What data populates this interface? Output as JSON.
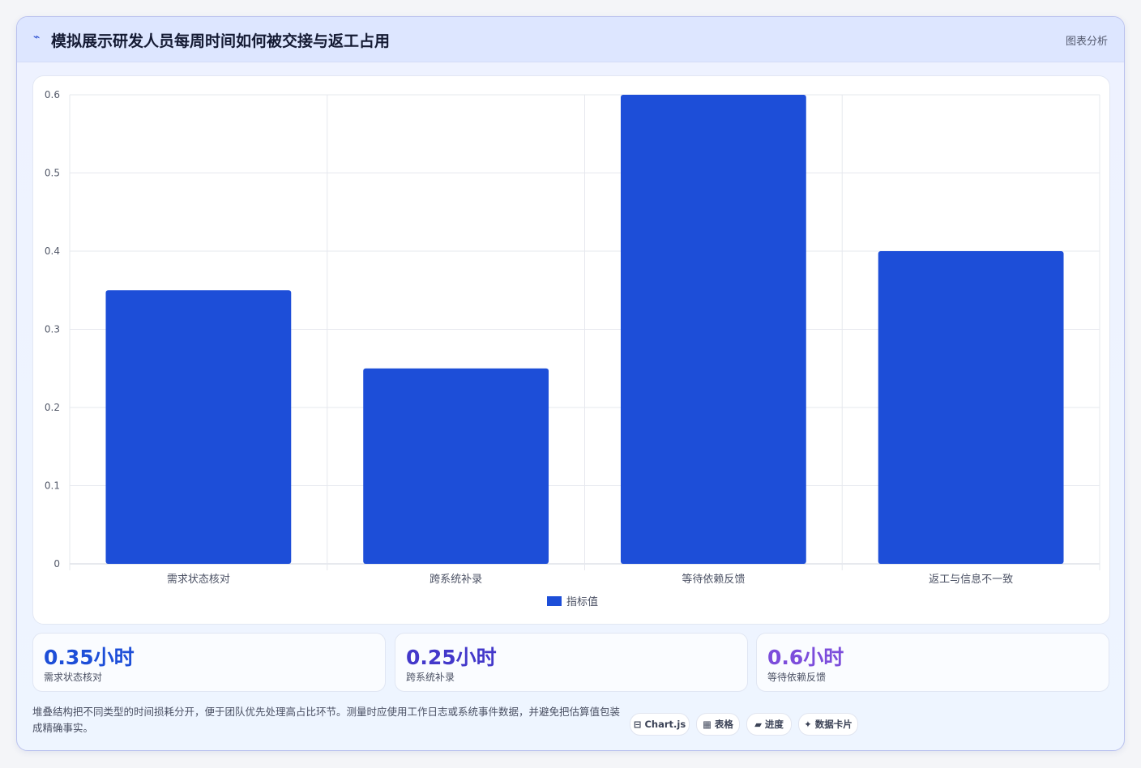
{
  "header": {
    "icon": "trend-line-icon",
    "title": "模拟展示研发人员每周时间如何被交接与返工占用",
    "right_label": "图表分析"
  },
  "chart_data": {
    "type": "bar",
    "categories": [
      "需求状态核对",
      "跨系统补录",
      "等待依赖反馈",
      "返工与信息不一致"
    ],
    "series": [
      {
        "name": "指标值",
        "values": [
          0.35,
          0.25,
          0.6,
          0.4
        ],
        "color": "#1d4ed8"
      }
    ],
    "ylim": [
      0,
      0.6
    ],
    "yticks": [
      0,
      0.1,
      0.2,
      0.3,
      0.4,
      0.5,
      0.6
    ],
    "grid": true,
    "legend": "bottom-center"
  },
  "stats": [
    {
      "value": "0.35小时",
      "label": "需求状态核对",
      "color": "#1d4ed8"
    },
    {
      "value": "0.25小时",
      "label": "跨系统补录",
      "color": "#4338ca"
    },
    {
      "value": "0.6小时",
      "label": "等待依赖反馈",
      "color": "#7c4ddb"
    }
  ],
  "footer": {
    "note": "堆叠结构把不同类型的时间损耗分开，便于团队优先处理高占比环节。测量时应使用工作日志或系统事件数据，并避免把估算值包装成精确事实。",
    "pills": [
      {
        "label": "⊟ Chart.js",
        "icon": "chart-icon"
      },
      {
        "label": "▦ 表格",
        "icon": "table-icon"
      },
      {
        "label": "▰ 进度",
        "icon": "progress-icon"
      },
      {
        "label": "✦ 数据卡片",
        "icon": "sparkle-icon"
      }
    ]
  }
}
